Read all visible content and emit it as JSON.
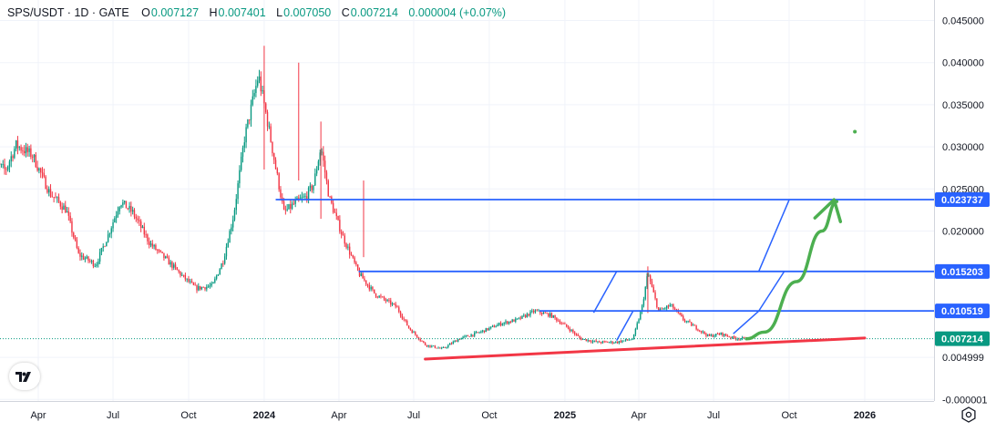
{
  "header": {
    "symbol": "SPS/USDT",
    "sep1": "·",
    "interval": "1D",
    "sep2": "·",
    "exchange": "GATE",
    "o_label": "O",
    "o_value": "0.007127",
    "h_label": "H",
    "h_value": "0.007401",
    "l_label": "L",
    "l_value": "0.007050",
    "c_label": "C",
    "c_value": "0.007214",
    "change": "0.000004 (+0.07%)"
  },
  "colors": {
    "up": "#089981",
    "down": "#f23645",
    "hline": "#2962ff",
    "support": "#f23645",
    "projection": "#4caf50",
    "grid": "#f0f3fa"
  },
  "icons": {
    "logo": "tradingview-logo-icon",
    "settings": "gear-icon"
  },
  "chart_data": {
    "type": "candlestick",
    "title": "SPS/USDT · 1D · GATE",
    "y_axis": {
      "side": "right",
      "ticks": [
        "0.045000",
        "0.040000",
        "0.035000",
        "0.030000",
        "0.025000",
        "0.020000",
        "0.004999",
        "-0.000001"
      ],
      "ylim": [
        -1e-06,
        0.045
      ]
    },
    "x_axis": {
      "ticks": [
        "Apr",
        "Jul",
        "Oct",
        "2024",
        "Apr",
        "Jul",
        "Oct",
        "2025",
        "Apr",
        "Jul",
        "Oct",
        "2026"
      ],
      "range": [
        "2023-02",
        "2026-02"
      ]
    },
    "price_tags": [
      {
        "label": "0.023737",
        "value": 0.023737,
        "kind": "level"
      },
      {
        "label": "0.015203",
        "value": 0.015203,
        "kind": "level"
      },
      {
        "label": "0.010519",
        "value": 0.010519,
        "kind": "level"
      },
      {
        "label": "0.007214",
        "value": 0.007214,
        "kind": "last"
      }
    ],
    "price_path": [
      [
        "2023-02-01",
        0.0285
      ],
      [
        "2023-02-20",
        0.0272
      ],
      [
        "2023-03-05",
        0.0302
      ],
      [
        "2023-03-25",
        0.029
      ],
      [
        "2023-04-15",
        0.0245
      ],
      [
        "2023-05-05",
        0.0225
      ],
      [
        "2023-05-20",
        0.0172
      ],
      [
        "2023-06-10",
        0.016
      ],
      [
        "2023-06-25",
        0.0195
      ],
      [
        "2023-07-10",
        0.0235
      ],
      [
        "2023-07-25",
        0.0222
      ],
      [
        "2023-08-15",
        0.0185
      ],
      [
        "2023-09-05",
        0.0165
      ],
      [
        "2023-09-25",
        0.0145
      ],
      [
        "2023-10-10",
        0.0132
      ],
      [
        "2023-10-30",
        0.0135
      ],
      [
        "2023-11-12",
        0.0165
      ],
      [
        "2023-11-25",
        0.022
      ],
      [
        "2023-12-08",
        0.031
      ],
      [
        "2023-12-25",
        0.0385
      ],
      [
        "2024-01-05",
        0.033
      ],
      [
        "2024-01-15",
        0.0275
      ],
      [
        "2024-01-25",
        0.0222
      ],
      [
        "2024-02-10",
        0.0235
      ],
      [
        "2024-02-20",
        0.024
      ],
      [
        "2024-03-01",
        0.0255
      ],
      [
        "2024-03-10",
        0.03
      ],
      [
        "2024-03-20",
        0.024
      ],
      [
        "2024-04-05",
        0.0195
      ],
      [
        "2024-04-25",
        0.015
      ],
      [
        "2024-05-15",
        0.0125
      ],
      [
        "2024-06-10",
        0.011
      ],
      [
        "2024-06-25",
        0.0085
      ],
      [
        "2024-07-15",
        0.0065
      ],
      [
        "2024-08-05",
        0.006
      ],
      [
        "2024-08-25",
        0.0072
      ],
      [
        "2024-09-20",
        0.008
      ],
      [
        "2024-10-15",
        0.009
      ],
      [
        "2024-11-05",
        0.0095
      ],
      [
        "2024-11-25",
        0.0105
      ],
      [
        "2024-12-15",
        0.01
      ],
      [
        "2025-01-05",
        0.0085
      ],
      [
        "2025-01-20",
        0.0072
      ],
      [
        "2025-02-10",
        0.0068
      ],
      [
        "2025-03-05",
        0.0068
      ],
      [
        "2025-03-25",
        0.0072
      ],
      [
        "2025-04-05",
        0.011
      ],
      [
        "2025-04-12",
        0.015
      ],
      [
        "2025-04-25",
        0.0105
      ],
      [
        "2025-05-10",
        0.0112
      ],
      [
        "2025-05-25",
        0.0095
      ],
      [
        "2025-06-10",
        0.0085
      ],
      [
        "2025-06-25",
        0.0075
      ],
      [
        "2025-07-10",
        0.0078
      ],
      [
        "2025-07-25",
        0.0073
      ],
      [
        "2025-08-10",
        0.0072
      ]
    ],
    "spikes": [
      {
        "date": "2024-01-01",
        "high": 0.042
      },
      {
        "date": "2024-02-12",
        "high": 0.04
      },
      {
        "date": "2024-03-10",
        "high": 0.033
      },
      {
        "date": "2024-05-01",
        "high": 0.026
      },
      {
        "date": "2025-04-12",
        "high": 0.0158
      }
    ],
    "drawings": {
      "horizontal_levels": [
        {
          "value": 0.023737,
          "from": "2024-01-15"
        },
        {
          "value": 0.015203,
          "from": "2024-04-25"
        },
        {
          "value": 0.010519,
          "from": "2024-12-01"
        }
      ],
      "support_line": {
        "from": [
          "2024-07-15",
          0.0048
        ],
        "to": [
          "2026-01-01",
          0.0073
        ]
      },
      "channel_segments": [
        {
          "from": [
            "2025-02-05",
            0.0103
          ],
          "to": [
            "2025-03-05",
            0.0152
          ]
        },
        {
          "from": [
            "2025-03-05",
            0.007
          ],
          "to": [
            "2025-03-25",
            0.0105
          ]
        },
        {
          "from": [
            "2025-07-25",
            0.0078
          ],
          "to": [
            "2025-08-25",
            0.0105
          ]
        },
        {
          "from": [
            "2025-08-25",
            0.0105
          ],
          "to": [
            "2025-09-25",
            0.0152
          ]
        },
        {
          "from": [
            "2025-08-25",
            0.0152
          ],
          "to": [
            "2025-10-01",
            0.0237
          ]
        }
      ],
      "projection_path": [
        [
          "2025-08-10",
          0.0072
        ],
        [
          "2025-09-01",
          0.008
        ],
        [
          "2025-10-10",
          0.014
        ],
        [
          "2025-11-10",
          0.02
        ],
        [
          "2025-11-28",
          0.0235
        ]
      ],
      "target_point": {
        "date": "2025-12-20",
        "value": 0.0318
      }
    }
  }
}
